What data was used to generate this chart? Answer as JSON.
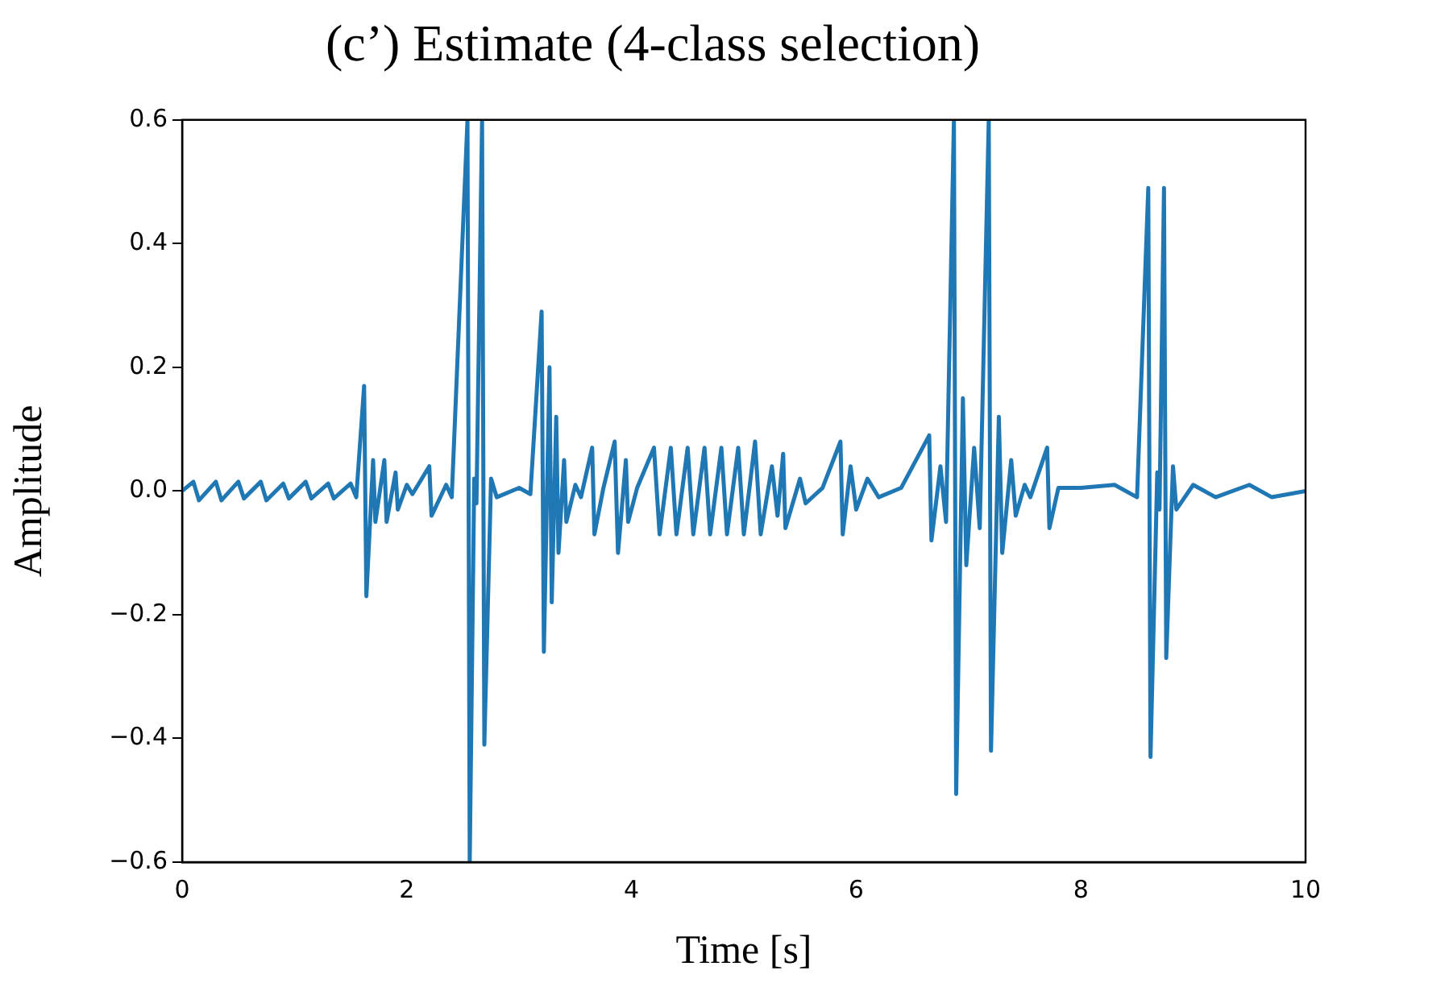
{
  "chart_data": {
    "type": "line",
    "title": "(c’) Estimate (4-class selection)",
    "xlabel": "Time [s]",
    "ylabel": "Amplitude",
    "xlim": [
      0,
      10
    ],
    "xticks": [
      0,
      2,
      4,
      6,
      8,
      10
    ],
    "ylim": [
      -0.6,
      0.6
    ],
    "yticks": [
      {
        "value": -0.6,
        "label": "−0.6"
      },
      {
        "value": -0.4,
        "label": "−0.4"
      },
      {
        "value": -0.2,
        "label": "−0.2"
      },
      {
        "value": 0,
        "label": "0.0"
      },
      {
        "value": 0.2,
        "label": "0.2"
      },
      {
        "value": 0.4,
        "label": "0.4"
      },
      {
        "value": 0.6,
        "label": "0.6"
      }
    ],
    "grid": false,
    "legend": false,
    "marker": "none",
    "line_style": "solid",
    "series": [
      {
        "color": "#1f77b4",
        "x": [
          0,
          0.1,
          0.15,
          0.3,
          0.35,
          0.5,
          0.55,
          0.7,
          0.75,
          0.9,
          0.95,
          1.1,
          1.15,
          1.3,
          1.35,
          1.5,
          1.55,
          1.62,
          1.64,
          1.7,
          1.72,
          1.8,
          1.82,
          1.9,
          1.92,
          2.0,
          2.05,
          2.2,
          2.22,
          2.35,
          2.4,
          2.54,
          2.56,
          2.6,
          2.62,
          2.67,
          2.69,
          2.75,
          2.8,
          3.0,
          3.1,
          3.2,
          3.22,
          3.27,
          3.29,
          3.33,
          3.35,
          3.4,
          3.42,
          3.5,
          3.55,
          3.65,
          3.67,
          3.75,
          3.85,
          3.88,
          3.95,
          3.97,
          4.05,
          4.2,
          4.25,
          4.35,
          4.4,
          4.5,
          4.55,
          4.65,
          4.7,
          4.8,
          4.85,
          4.95,
          5.0,
          5.1,
          5.15,
          5.25,
          5.3,
          5.35,
          5.37,
          5.5,
          5.55,
          5.7,
          5.86,
          5.88,
          5.95,
          6.0,
          6.1,
          6.2,
          6.4,
          6.65,
          6.67,
          6.75,
          6.8,
          6.87,
          6.89,
          6.95,
          6.98,
          7.05,
          7.1,
          7.18,
          7.2,
          7.27,
          7.3,
          7.38,
          7.42,
          7.5,
          7.55,
          7.7,
          7.72,
          7.8,
          8.0,
          8.3,
          8.5,
          8.6,
          8.62,
          8.68,
          8.7,
          8.74,
          8.76,
          8.82,
          8.85,
          9.0,
          9.2,
          9.5,
          9.7,
          10
        ],
        "values": [
          0,
          0.015,
          -0.015,
          0.015,
          -0.015,
          0.015,
          -0.012,
          0.015,
          -0.015,
          0.012,
          -0.012,
          0.015,
          -0.012,
          0.012,
          -0.012,
          0.012,
          -0.01,
          0.17,
          -0.17,
          0.05,
          -0.05,
          0.05,
          -0.05,
          0.03,
          -0.03,
          0.01,
          -0.005,
          0.04,
          -0.04,
          0.01,
          -0.01,
          0.6,
          -0.6,
          0.02,
          -0.02,
          0.6,
          -0.41,
          0.02,
          -0.01,
          0.005,
          -0.005,
          0.29,
          -0.26,
          0.2,
          -0.18,
          0.12,
          -0.1,
          0.05,
          -0.05,
          0.01,
          -0.01,
          0.07,
          -0.07,
          0.005,
          0.08,
          -0.1,
          0.05,
          -0.05,
          0.005,
          0.07,
          -0.07,
          0.07,
          -0.07,
          0.07,
          -0.07,
          0.07,
          -0.07,
          0.07,
          -0.07,
          0.07,
          -0.07,
          0.08,
          -0.07,
          0.04,
          -0.04,
          0.06,
          -0.06,
          0.02,
          -0.02,
          0.005,
          0.08,
          -0.07,
          0.04,
          -0.03,
          0.02,
          -0.01,
          0.005,
          0.09,
          -0.08,
          0.04,
          -0.05,
          0.6,
          -0.49,
          0.15,
          -0.12,
          0.07,
          -0.06,
          0.6,
          -0.42,
          0.12,
          -0.1,
          0.05,
          -0.04,
          0.01,
          -0.01,
          0.07,
          -0.06,
          0.005,
          0.005,
          0.01,
          -0.01,
          0.49,
          -0.43,
          0.03,
          -0.03,
          0.49,
          -0.27,
          0.04,
          -0.03,
          0.01,
          -0.01,
          0.01,
          -0.01,
          0
        ]
      }
    ]
  }
}
